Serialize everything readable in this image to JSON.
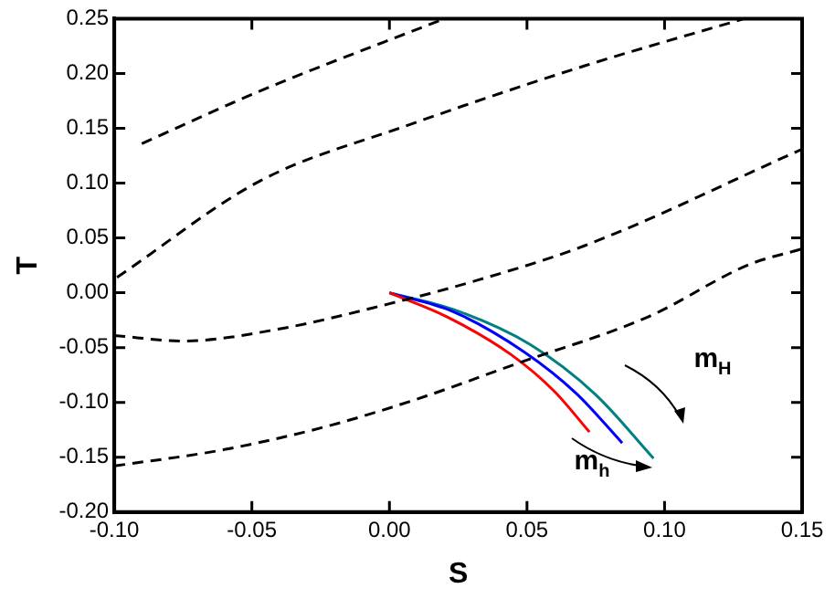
{
  "chart_data": {
    "type": "line",
    "xlabel": "S",
    "ylabel": "T",
    "xlim": [
      -0.1,
      0.15
    ],
    "ylim": [
      -0.2,
      0.25
    ],
    "xticks": [
      {
        "value": -0.1,
        "label": "-0.10"
      },
      {
        "value": -0.05,
        "label": "-0.05"
      },
      {
        "value": 0,
        "label": "0.00"
      },
      {
        "value": 0.05,
        "label": "0.05"
      },
      {
        "value": 0.1,
        "label": "0.10"
      },
      {
        "value": 0.15,
        "label": "0.15"
      }
    ],
    "yticks": [
      {
        "value": -0.2,
        "label": "-0.20"
      },
      {
        "value": -0.15,
        "label": "-0.15"
      },
      {
        "value": -0.1,
        "label": "-0.10"
      },
      {
        "value": -0.05,
        "label": "-0.05"
      },
      {
        "value": 0,
        "label": "0.00"
      },
      {
        "value": 0.05,
        "label": "0.05"
      },
      {
        "value": 0.1,
        "label": "0.10"
      },
      {
        "value": 0.15,
        "label": "0.15"
      },
      {
        "value": 0.2,
        "label": "0.20"
      },
      {
        "value": 0.25,
        "label": "0.25"
      }
    ],
    "grid": false,
    "legend": false,
    "marker": "none",
    "series": [
      {
        "type": "line",
        "color": "#000000",
        "line_style": "dashed",
        "x": [
          -0.09,
          -0.047,
          0.02
        ],
        "values": [
          0.136,
          0.184,
          0.25
        ]
      },
      {
        "type": "line",
        "color": "#000000",
        "line_style": "dashed",
        "x": [
          -0.099,
          -0.047,
          0.007,
          0.071,
          0.129
        ],
        "values": [
          0.014,
          0.102,
          0.153,
          0.207,
          0.25
        ]
      },
      {
        "type": "line",
        "color": "#000000",
        "line_style": "dashed",
        "x": [
          -0.1,
          -0.075,
          -0.04,
          0.0,
          0.03,
          0.071,
          0.15
        ],
        "values": [
          -0.039,
          -0.044,
          -0.033,
          -0.01,
          0.01,
          0.043,
          0.131
        ]
      },
      {
        "type": "line",
        "color": "#000000",
        "line_style": "dashed",
        "x": [
          -0.1,
          -0.06,
          -0.023,
          0.01,
          0.047,
          0.094,
          0.131,
          0.15
        ],
        "values": [
          -0.158,
          -0.143,
          -0.122,
          -0.097,
          -0.064,
          -0.022,
          0.026,
          0.04
        ]
      },
      {
        "type": "line",
        "color": "#ff0000",
        "line_style": "solid",
        "x": [
          0,
          0.021,
          0.044,
          0.06,
          0.0727
        ],
        "values": [
          0,
          -0.022,
          -0.056,
          -0.09,
          -0.127
        ]
      },
      {
        "type": "line",
        "color": "#0000ff",
        "line_style": "solid",
        "x": [
          0,
          0.023,
          0.049,
          0.068,
          0.0846
        ],
        "values": [
          0,
          -0.017,
          -0.054,
          -0.092,
          -0.137
        ]
      },
      {
        "type": "line",
        "color": "#008080",
        "line_style": "solid",
        "x": [
          0,
          0.023,
          0.051,
          0.075,
          0.096
        ],
        "values": [
          0,
          -0.015,
          -0.047,
          -0.093,
          -0.151
        ]
      }
    ],
    "annotations": [
      "m$_{H}$",
      "m$_{h}$"
    ]
  }
}
